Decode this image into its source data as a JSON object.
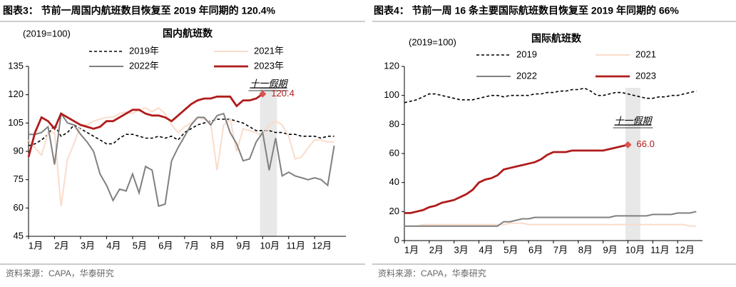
{
  "chart_data": [
    {
      "type": "line",
      "figure_title": "图表3： 节前一周国内航班数目恢复至 2019 年同期的 120.4%",
      "title": "国内航班数",
      "unit_label": "(2019=100)",
      "annotation": "十一假期",
      "source": "资料来源：CAPA，华泰研究",
      "x": [
        1,
        1.25,
        1.5,
        1.75,
        2,
        2.25,
        2.5,
        2.75,
        3,
        3.25,
        3.5,
        3.75,
        4,
        4.25,
        4.5,
        4.75,
        5,
        5.25,
        5.5,
        5.75,
        6,
        6.25,
        6.5,
        6.75,
        7,
        7.25,
        7.5,
        7.75,
        8,
        8.25,
        8.5,
        8.75,
        9,
        9.25,
        9.5,
        9.75,
        10,
        10.25,
        10.5,
        10.75,
        11,
        11.25,
        11.5,
        11.75,
        12,
        12.25,
        12.5,
        12.75
      ],
      "xlim": [
        1,
        13.2
      ],
      "xticks": [
        {
          "value": 1,
          "label": "1月"
        },
        {
          "value": 2,
          "label": "2月"
        },
        {
          "value": 3,
          "label": "3月"
        },
        {
          "value": 4,
          "label": "4月"
        },
        {
          "value": 5,
          "label": "5月"
        },
        {
          "value": 6,
          "label": "6月"
        },
        {
          "value": 7,
          "label": "7月"
        },
        {
          "value": 8,
          "label": "8月"
        },
        {
          "value": 9,
          "label": "9月"
        },
        {
          "value": 10,
          "label": "10月"
        },
        {
          "value": 11,
          "label": "11月"
        },
        {
          "value": 12,
          "label": "12月"
        }
      ],
      "ylim": [
        45,
        135
      ],
      "yticks": [
        45,
        60,
        75,
        90,
        105,
        120,
        135
      ],
      "highlight_x": [
        9.9,
        10.55
      ],
      "series": [
        {
          "name": "2019年",
          "color": "#000000",
          "dashed": true,
          "values": [
            93,
            94,
            96,
            99,
            104,
            98,
            100,
            104,
            102,
            100,
            98,
            96,
            94,
            94,
            97,
            99,
            99,
            98,
            97,
            97,
            98,
            97,
            98,
            96,
            100,
            102,
            104,
            105,
            106,
            107,
            107,
            107,
            106,
            105,
            103,
            101,
            101,
            101,
            100,
            100,
            99,
            99,
            98,
            98,
            98,
            97,
            98,
            98
          ]
        },
        {
          "name": "2021年",
          "color": "#f9dccb",
          "values": [
            96,
            92,
            88,
            100,
            100,
            61,
            86,
            94,
            104,
            104,
            106,
            107,
            108,
            108,
            110,
            111,
            110,
            112,
            113,
            111,
            113,
            110,
            104,
            100,
            103,
            105,
            108,
            107,
            105,
            80,
            104,
            107,
            90,
            102,
            101,
            100,
            98,
            104,
            106,
            104,
            98,
            86,
            87,
            92,
            96,
            96,
            95,
            95
          ]
        },
        {
          "name": "2022年",
          "color": "#808080",
          "values": [
            99,
            99,
            100,
            103,
            83,
            110,
            105,
            104,
            99,
            95,
            90,
            78,
            72,
            64,
            70,
            69,
            78,
            68,
            82,
            80,
            61,
            62,
            85,
            92,
            98,
            104,
            108,
            108,
            104,
            109,
            110,
            100,
            94,
            85,
            86,
            95,
            100,
            80,
            97,
            77,
            79,
            77,
            76,
            75,
            76,
            75,
            72,
            93
          ]
        },
        {
          "name": "2023年",
          "color": "#b01c1c",
          "values": [
            87,
            100,
            108,
            106,
            102,
            110,
            108,
            106,
            104,
            103,
            102,
            103,
            106,
            106,
            108,
            110,
            112,
            112,
            110,
            109,
            109,
            108,
            106,
            109,
            112,
            115,
            117,
            118,
            118,
            119,
            119,
            119,
            114,
            117,
            117,
            118,
            120.4,
            null,
            null,
            null,
            null,
            null,
            null,
            null,
            null,
            null,
            null,
            null
          ],
          "value_labels": [
            null,
            null,
            null,
            null,
            null,
            null,
            null,
            null,
            null,
            null,
            null,
            null,
            null,
            null,
            null,
            null,
            null,
            null,
            null,
            null,
            null,
            null,
            null,
            null,
            null,
            null,
            null,
            null,
            null,
            null,
            null,
            null,
            null,
            null,
            null,
            null,
            "120.4",
            null,
            null,
            null,
            null,
            null,
            null,
            null,
            null,
            null,
            null,
            null
          ]
        }
      ]
    },
    {
      "type": "line",
      "figure_title": "图表4： 节前一周 16 条主要国际航班数目恢复至 2019 年同期的 66%",
      "title": "国际航班数",
      "unit_label": "(2019=100)",
      "annotation": "十一假期",
      "source": "资料来源：CAPA，华泰研究",
      "x": [
        1,
        1.25,
        1.5,
        1.75,
        2,
        2.25,
        2.5,
        2.75,
        3,
        3.25,
        3.5,
        3.75,
        4,
        4.25,
        4.5,
        4.75,
        5,
        5.25,
        5.5,
        5.75,
        6,
        6.25,
        6.5,
        6.75,
        7,
        7.25,
        7.5,
        7.75,
        8,
        8.25,
        8.5,
        8.75,
        9,
        9.25,
        9.5,
        9.75,
        10,
        10.25,
        10.5,
        10.75,
        11,
        11.25,
        11.5,
        11.75,
        12,
        12.25,
        12.5,
        12.75
      ],
      "xlim": [
        1,
        13
      ],
      "xticks": [
        {
          "value": 1,
          "label": "1月"
        },
        {
          "value": 2,
          "label": "2月"
        },
        {
          "value": 3,
          "label": "3月"
        },
        {
          "value": 4,
          "label": "4月"
        },
        {
          "value": 5,
          "label": "5月"
        },
        {
          "value": 6,
          "label": "6月"
        },
        {
          "value": 7,
          "label": "7月"
        },
        {
          "value": 8,
          "label": "8月"
        },
        {
          "value": 9,
          "label": "9月"
        },
        {
          "value": 10,
          "label": "10月"
        },
        {
          "value": 11,
          "label": "11月"
        },
        {
          "value": 12,
          "label": "12月"
        }
      ],
      "ylim": [
        0,
        120
      ],
      "yticks": [
        0,
        20,
        40,
        60,
        80,
        100,
        120
      ],
      "highlight_x": [
        9.9,
        10.5
      ],
      "series": [
        {
          "name": "2019",
          "color": "#000000",
          "dashed": true,
          "values": [
            95,
            96,
            97,
            99,
            101,
            101,
            100,
            99,
            98,
            97,
            97,
            97,
            98,
            99,
            100,
            100,
            99,
            100,
            100,
            100,
            100,
            101,
            101,
            102,
            102,
            103,
            103,
            104,
            104,
            105,
            103,
            100,
            100,
            101,
            102,
            102,
            101,
            100,
            99,
            98,
            98,
            99,
            99,
            100,
            100,
            101,
            102,
            103
          ]
        },
        {
          "name": "2021",
          "color": "#f9dccb",
          "values": [
            10,
            10,
            10,
            11,
            11,
            11,
            11,
            11,
            11,
            11,
            11,
            11,
            11,
            11,
            11,
            11,
            11,
            12,
            12,
            12,
            11,
            11,
            11,
            11,
            11,
            11,
            11,
            11,
            11,
            11,
            11,
            11,
            11,
            11,
            11,
            11,
            11,
            11,
            11,
            11,
            11,
            11,
            11,
            11,
            11,
            11,
            10,
            10
          ]
        },
        {
          "name": "2022",
          "color": "#808080",
          "values": [
            10,
            10,
            10,
            10,
            10,
            10,
            10,
            10,
            10,
            10,
            10,
            10,
            10,
            10,
            10,
            10,
            13,
            13,
            14,
            15,
            15,
            16,
            16,
            16,
            16,
            16,
            16,
            16,
            16,
            16,
            16,
            16,
            16,
            16,
            17,
            17,
            17,
            17,
            17,
            17,
            18,
            18,
            18,
            18,
            19,
            19,
            19,
            20
          ]
        },
        {
          "name": "2023",
          "color": "#b01c1c",
          "values": [
            19,
            19,
            20,
            21,
            23,
            24,
            26,
            27,
            28,
            30,
            32,
            35,
            40,
            42,
            43,
            45,
            49,
            50,
            51,
            52,
            53,
            54,
            56,
            59,
            61,
            61,
            61,
            62,
            62,
            62,
            62,
            62,
            62,
            63,
            64,
            65,
            66.0,
            null,
            null,
            null,
            null,
            null,
            null,
            null,
            null,
            null,
            null,
            null
          ],
          "value_labels": [
            null,
            null,
            null,
            null,
            null,
            null,
            null,
            null,
            null,
            null,
            null,
            null,
            null,
            null,
            null,
            null,
            null,
            null,
            null,
            null,
            null,
            null,
            null,
            null,
            null,
            null,
            null,
            null,
            null,
            null,
            null,
            null,
            null,
            null,
            null,
            null,
            "66.0",
            null,
            null,
            null,
            null,
            null,
            null,
            null,
            null,
            null,
            null,
            null
          ]
        }
      ]
    }
  ]
}
